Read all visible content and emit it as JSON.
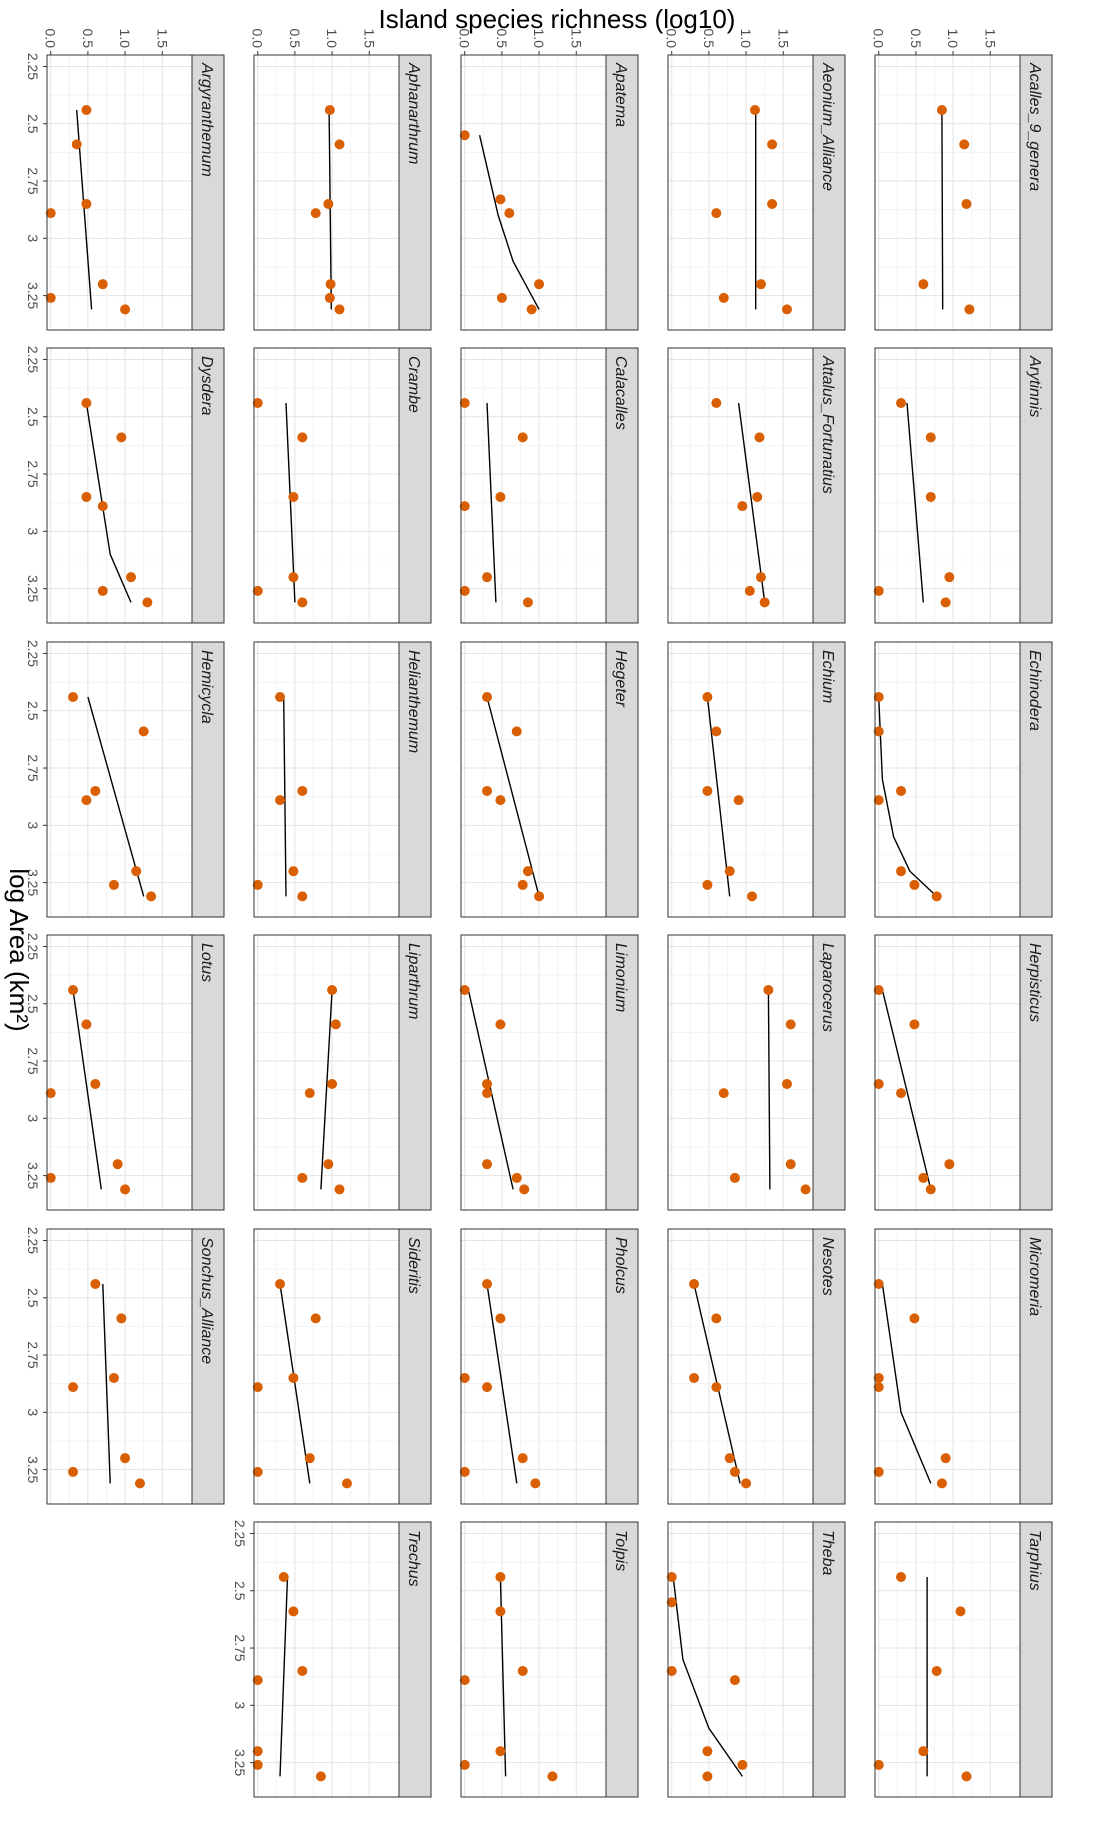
{
  "chart_data": {
    "type": "scatter",
    "layout": "facet grid of small multiples, figure rotated 90 degrees clockwise",
    "xlabel": "log Area (km²)",
    "ylabel": "Island species richness (log10)",
    "x_ticks": [
      "2.25",
      "2.5",
      "2.75",
      "3",
      "3.25"
    ],
    "y_ticks": [
      "0.0",
      "0.5",
      "1.0",
      "1.5"
    ],
    "xlim": [
      2.2,
      3.4
    ],
    "ylim": [
      -0.05,
      1.9
    ],
    "grid": true,
    "point_color": "#D95F02",
    "line_color": "#000000",
    "panels": [
      {
        "title": "Acalles_9_genera",
        "x": [
          2.44,
          2.59,
          2.85,
          3.2,
          3.31
        ],
        "y": [
          0.85,
          1.15,
          1.18,
          0.6,
          1.22
        ],
        "fit": [
          [
            2.44,
            0.85
          ],
          [
            3.31,
            0.86
          ]
        ]
      },
      {
        "title": "Aeonium_Alliance",
        "x": [
          2.44,
          2.59,
          2.85,
          2.89,
          3.2,
          3.26,
          3.31
        ],
        "y": [
          1.12,
          1.35,
          1.35,
          0.6,
          1.2,
          0.7,
          1.55
        ],
        "fit": [
          [
            2.44,
            1.13
          ],
          [
            3.31,
            1.13
          ]
        ]
      },
      {
        "title": "Apatema",
        "x": [
          2.55,
          2.83,
          2.89,
          3.2,
          3.26,
          3.31
        ],
        "y": [
          0.0,
          0.48,
          0.6,
          1.0,
          0.5,
          0.9
        ],
        "fit": [
          [
            2.55,
            0.2
          ],
          [
            2.9,
            0.45
          ],
          [
            3.1,
            0.65
          ],
          [
            3.31,
            1.0
          ]
        ]
      },
      {
        "title": "Aphanarthrum",
        "x": [
          2.44,
          2.59,
          2.85,
          2.89,
          3.2,
          3.26,
          3.31
        ],
        "y": [
          0.97,
          1.1,
          0.95,
          0.78,
          0.98,
          0.97,
          1.1
        ],
        "fit": [
          [
            2.44,
            0.96
          ],
          [
            3.31,
            0.99
          ]
        ]
      },
      {
        "title": "Argyranthemum",
        "x": [
          2.44,
          2.59,
          2.85,
          2.89,
          3.2,
          3.26,
          3.31
        ],
        "y": [
          0.48,
          0.35,
          0.48,
          0.0,
          0.7,
          0.0,
          1.0
        ],
        "fit": [
          [
            2.44,
            0.35
          ],
          [
            3.31,
            0.55
          ]
        ]
      },
      {
        "title": "Arytinnis",
        "x": [
          2.44,
          2.59,
          2.85,
          3.2,
          3.26,
          3.31
        ],
        "y": [
          0.3,
          0.7,
          0.7,
          0.95,
          0.0,
          0.9
        ],
        "fit": [
          [
            2.44,
            0.38
          ],
          [
            3.31,
            0.6
          ]
        ]
      },
      {
        "title": "Attalus_Fortunatius",
        "x": [
          2.44,
          2.59,
          2.85,
          2.89,
          3.2,
          3.26,
          3.31
        ],
        "y": [
          0.6,
          1.18,
          1.15,
          0.95,
          1.2,
          1.05,
          1.25
        ],
        "fit": [
          [
            2.44,
            0.9
          ],
          [
            3.31,
            1.25
          ]
        ]
      },
      {
        "title": "Calacalles",
        "x": [
          2.44,
          2.59,
          2.85,
          2.89,
          3.2,
          3.26,
          3.31
        ],
        "y": [
          0.0,
          0.78,
          0.48,
          0.0,
          0.3,
          0.0,
          0.85
        ],
        "fit": [
          [
            2.44,
            0.3
          ],
          [
            3.31,
            0.42
          ]
        ]
      },
      {
        "title": "Crambe",
        "x": [
          2.44,
          2.59,
          2.85,
          3.2,
          3.26,
          3.31
        ],
        "y": [
          0.0,
          0.6,
          0.48,
          0.48,
          0.0,
          0.6
        ],
        "fit": [
          [
            2.44,
            0.38
          ],
          [
            3.31,
            0.5
          ]
        ]
      },
      {
        "title": "Dysdera",
        "x": [
          2.44,
          2.59,
          2.85,
          2.89,
          3.2,
          3.26,
          3.31
        ],
        "y": [
          0.48,
          0.95,
          0.48,
          0.7,
          1.08,
          0.7,
          1.3
        ],
        "fit": [
          [
            2.44,
            0.48
          ],
          [
            3.1,
            0.8
          ],
          [
            3.31,
            1.08
          ]
        ]
      },
      {
        "title": "Echinodera",
        "x": [
          2.44,
          2.59,
          2.85,
          2.89,
          3.2,
          3.26,
          3.31
        ],
        "y": [
          0.0,
          0.0,
          0.3,
          0.0,
          0.3,
          0.48,
          0.78
        ],
        "fit": [
          [
            2.44,
            0.0
          ],
          [
            2.8,
            0.05
          ],
          [
            3.05,
            0.2
          ],
          [
            3.2,
            0.42
          ],
          [
            3.31,
            0.78
          ]
        ]
      },
      {
        "title": "Echium",
        "x": [
          2.44,
          2.59,
          2.85,
          2.89,
          3.2,
          3.26,
          3.31
        ],
        "y": [
          0.48,
          0.6,
          0.48,
          0.9,
          0.78,
          0.48,
          1.08
        ],
        "fit": [
          [
            2.44,
            0.48
          ],
          [
            3.31,
            0.78
          ]
        ]
      },
      {
        "title": "Hegeter",
        "x": [
          2.44,
          2.59,
          2.85,
          2.89,
          3.2,
          3.26,
          3.31
        ],
        "y": [
          0.3,
          0.7,
          0.3,
          0.48,
          0.85,
          0.78,
          1.0
        ],
        "fit": [
          [
            2.44,
            0.3
          ],
          [
            3.31,
            1.0
          ]
        ]
      },
      {
        "title": "Helianthemum",
        "x": [
          2.44,
          2.85,
          2.89,
          3.2,
          3.26,
          3.31
        ],
        "y": [
          0.3,
          0.6,
          0.3,
          0.48,
          0.0,
          0.6
        ],
        "fit": [
          [
            2.44,
            0.35
          ],
          [
            3.31,
            0.38
          ]
        ]
      },
      {
        "title": "Hemicycla",
        "x": [
          2.44,
          2.59,
          2.85,
          2.89,
          3.2,
          3.26,
          3.31
        ],
        "y": [
          0.3,
          1.25,
          0.6,
          0.48,
          1.15,
          0.85,
          1.35
        ],
        "fit": [
          [
            2.44,
            0.5
          ],
          [
            3.31,
            1.25
          ]
        ]
      },
      {
        "title": "Herpisticus",
        "x": [
          2.44,
          2.59,
          2.85,
          2.89,
          3.2,
          3.26,
          3.31
        ],
        "y": [
          0.0,
          0.48,
          0.0,
          0.3,
          0.95,
          0.6,
          0.7
        ],
        "fit": [
          [
            2.44,
            0.05
          ],
          [
            3.31,
            0.7
          ]
        ]
      },
      {
        "title": "Laparocerus",
        "x": [
          2.44,
          2.59,
          2.85,
          2.89,
          3.2,
          3.26,
          3.31
        ],
        "y": [
          1.3,
          1.6,
          1.55,
          0.7,
          1.6,
          0.85,
          1.8
        ],
        "fit": [
          [
            2.44,
            1.3
          ],
          [
            3.31,
            1.32
          ]
        ]
      },
      {
        "title": "Limonium",
        "x": [
          2.44,
          2.59,
          2.85,
          2.89,
          3.2,
          3.26,
          3.31
        ],
        "y": [
          0.0,
          0.48,
          0.3,
          0.3,
          0.3,
          0.7,
          0.8
        ],
        "fit": [
          [
            2.44,
            0.05
          ],
          [
            3.31,
            0.65
          ]
        ]
      },
      {
        "title": "Liparthrum",
        "x": [
          2.44,
          2.59,
          2.85,
          2.89,
          3.2,
          3.26,
          3.31
        ],
        "y": [
          1.0,
          1.05,
          1.0,
          0.7,
          0.95,
          0.6,
          1.1
        ],
        "fit": [
          [
            2.44,
            1.0
          ],
          [
            3.31,
            0.85
          ]
        ]
      },
      {
        "title": "Lotus",
        "x": [
          2.44,
          2.59,
          2.85,
          2.89,
          3.2,
          3.26,
          3.31
        ],
        "y": [
          0.3,
          0.48,
          0.6,
          0.0,
          0.9,
          0.0,
          1.0
        ],
        "fit": [
          [
            2.44,
            0.3
          ],
          [
            3.31,
            0.68
          ]
        ]
      },
      {
        "title": "Micromeria",
        "x": [
          2.44,
          2.59,
          2.85,
          2.89,
          3.2,
          3.26,
          3.31
        ],
        "y": [
          0.0,
          0.48,
          0.0,
          0.0,
          0.9,
          0.0,
          0.85
        ],
        "fit": [
          [
            2.44,
            0.05
          ],
          [
            3.0,
            0.3
          ],
          [
            3.31,
            0.7
          ]
        ]
      },
      {
        "title": "Nesotes",
        "x": [
          2.44,
          2.59,
          2.85,
          2.89,
          3.2,
          3.26,
          3.31
        ],
        "y": [
          0.3,
          0.6,
          0.3,
          0.6,
          0.78,
          0.85,
          1.0
        ],
        "fit": [
          [
            2.44,
            0.3
          ],
          [
            3.31,
            0.92
          ]
        ]
      },
      {
        "title": "Pholcus",
        "x": [
          2.44,
          2.59,
          2.85,
          2.89,
          3.2,
          3.26,
          3.31
        ],
        "y": [
          0.3,
          0.48,
          0.0,
          0.3,
          0.78,
          0.0,
          0.95
        ],
        "fit": [
          [
            2.44,
            0.3
          ],
          [
            3.31,
            0.7
          ]
        ]
      },
      {
        "title": "Sideritis",
        "x": [
          2.44,
          2.59,
          2.85,
          2.89,
          3.2,
          3.26,
          3.31
        ],
        "y": [
          0.3,
          0.78,
          0.48,
          0.0,
          0.7,
          0.0,
          1.2
        ],
        "fit": [
          [
            2.44,
            0.3
          ],
          [
            3.31,
            0.7
          ]
        ]
      },
      {
        "title": "Sonchus_Alliance",
        "x": [
          2.44,
          2.59,
          2.85,
          2.89,
          3.2,
          3.26,
          3.31
        ],
        "y": [
          0.6,
          0.95,
          0.85,
          0.3,
          1.0,
          0.3,
          1.2
        ],
        "fit": [
          [
            2.44,
            0.7
          ],
          [
            3.31,
            0.8
          ]
        ]
      },
      {
        "title": "Tarphius",
        "x": [
          2.44,
          2.59,
          2.85,
          3.2,
          3.26,
          3.31
        ],
        "y": [
          0.3,
          1.1,
          0.78,
          0.6,
          0.0,
          1.18
        ],
        "fit": [
          [
            2.44,
            0.65
          ],
          [
            3.31,
            0.65
          ]
        ]
      },
      {
        "title": "Theba",
        "x": [
          2.44,
          2.55,
          2.85,
          2.89,
          3.2,
          3.26,
          3.31
        ],
        "y": [
          0.0,
          0.0,
          0.0,
          0.85,
          0.48,
          0.95,
          0.48
        ],
        "fit": [
          [
            2.44,
            0.02
          ],
          [
            2.8,
            0.15
          ],
          [
            3.1,
            0.5
          ],
          [
            3.31,
            0.95
          ]
        ]
      },
      {
        "title": "Tolpis",
        "x": [
          2.44,
          2.59,
          2.85,
          2.89,
          3.2,
          3.26,
          3.31
        ],
        "y": [
          0.48,
          0.48,
          0.78,
          0.0,
          0.48,
          0.0,
          1.18
        ],
        "fit": [
          [
            2.44,
            0.48
          ],
          [
            3.31,
            0.55
          ]
        ]
      },
      {
        "title": "Trechus",
        "x": [
          2.44,
          2.59,
          2.85,
          2.89,
          3.2,
          3.26,
          3.31
        ],
        "y": [
          0.35,
          0.48,
          0.6,
          0.0,
          0.0,
          0.0,
          0.85
        ],
        "fit": [
          [
            2.44,
            0.4
          ],
          [
            3.31,
            0.3
          ]
        ]
      }
    ]
  }
}
